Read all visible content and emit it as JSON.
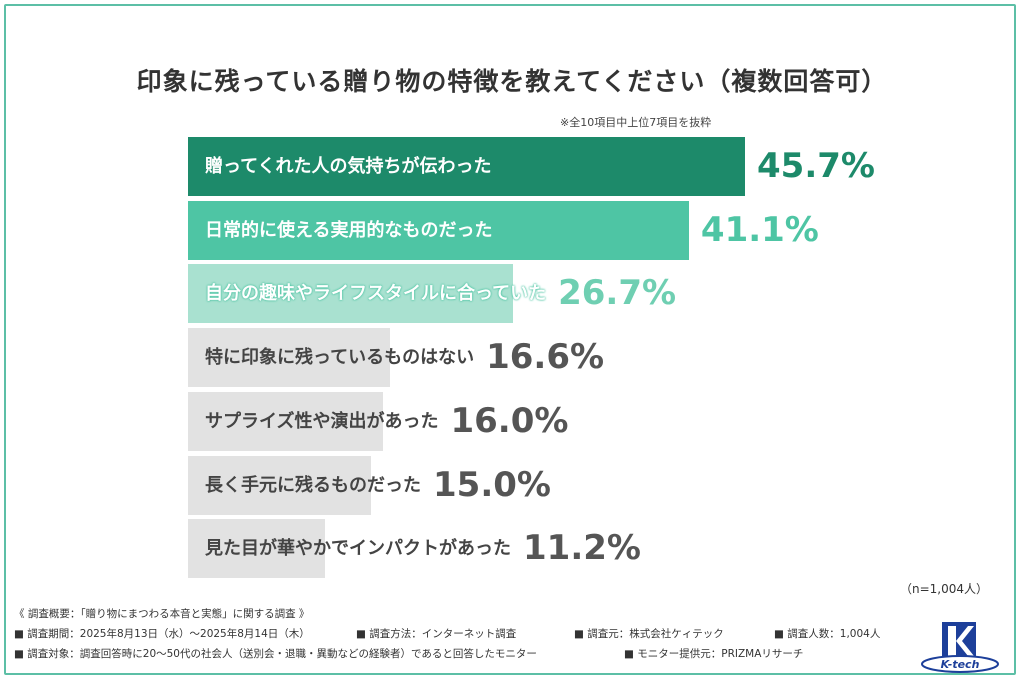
{
  "chart_data": {
    "type": "bar",
    "title": "印象に残っている贈り物の特徴を教えてください（複数回答可）",
    "subtitle": "※全10項目中上位7項目を抜粋",
    "categories": [
      "贈ってくれた人の気持ちが伝わった",
      "日常的に使える実用的なものだった",
      "自分の趣味やライフスタイルに合っていた",
      "特に印象に残っているものはない",
      "サプライズ性や演出があった",
      "長く手元に残るものだった",
      "見た目が華やかでインパクトがあった"
    ],
    "values": [
      45.7,
      41.1,
      26.7,
      16.6,
      16.0,
      15.0,
      11.2
    ],
    "value_labels": [
      "45.7%",
      "41.1%",
      "26.7%",
      "16.6%",
      "16.0%",
      "15.0%",
      "11.2%"
    ],
    "unit": "%",
    "xlim": [
      0,
      50
    ],
    "colors": {
      "bar_fill": [
        "#1d8a6a",
        "#4ec5a4",
        "#a9e1d0",
        "#e2e2e2",
        "#e2e2e2",
        "#e2e2e2",
        "#e2e2e2"
      ],
      "label_text": [
        "#ffffff",
        "#ffffff",
        "#ffffff",
        "#444444",
        "#444444",
        "#444444",
        "#444444"
      ],
      "value_text": [
        "#1d8a6a",
        "#4ec5a4",
        "#6fcfb2",
        "#555555",
        "#555555",
        "#555555",
        "#555555"
      ]
    },
    "sample_size": "（n=1,004人）"
  },
  "survey": {
    "heading": "《 調査概要：「贈り物にまつわる本音と実態」に関する調査 》",
    "period": "■ 調査期間：2025年8月13日（水）〜2025年8月14日（木）",
    "method": "■ 調査方法：インターネット調査",
    "by": "■ 調査元：株式会社ケィテック",
    "count": "■ 調査人数：1,004人",
    "target": "■ 調査対象：調査回答時に20〜50代の社会人（送別会・退職・異動などの経験者）であると回答したモニター",
    "provider": "■ モニター提供元：PRIZMAリサーチ"
  },
  "logo_text": "K-tech"
}
